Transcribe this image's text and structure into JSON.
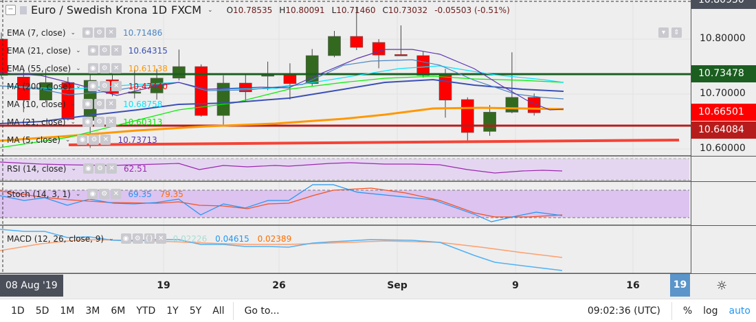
{
  "header": {
    "symbol": "Euro / Swedish Krona",
    "interval": "1D",
    "exchange": "FXCM",
    "open_label": "O",
    "open": "10.78535",
    "high_label": "H",
    "high": "10.80091",
    "low_label": "L",
    "low": "10.71460",
    "close_label": "C",
    "close": "10.73032",
    "change": "-0.05503 (-0.51%)"
  },
  "legends": [
    {
      "name": "EMA (7, close)",
      "value": "10.71486",
      "color": "#4a86c5"
    },
    {
      "name": "EMA (21, close)",
      "value": "10.64315",
      "color": "#3a4fb5"
    },
    {
      "name": "EMA (55, close)",
      "value": "10.61138",
      "color": "#ff9800"
    },
    {
      "name": "MA (200, close)",
      "value": "10.47440",
      "color": "#ff0000"
    },
    {
      "name": "MA (10, close)",
      "value": "10.68758",
      "color": "#00e5ff"
    },
    {
      "name": "MA (21, close)",
      "value": "10.60313",
      "color": "#00ee00"
    },
    {
      "name": "MA (5, close)",
      "value": "10.73713",
      "color": "#5e35b1"
    }
  ],
  "rsi": {
    "name": "RSI (14, close)",
    "value": "62.51",
    "color": "#9c27b0"
  },
  "stoch": {
    "name": "Stoch (14, 3, 1)",
    "k": "69.35",
    "d": "79.35",
    "k_color": "#2196f3",
    "d_color": "#ff6d00"
  },
  "macd": {
    "name": "MACD (12, 26, close, 9)",
    "hist": "0.02226",
    "macd": "0.04615",
    "signal": "0.02389"
  },
  "price_axis": {
    "ticks": [
      "10.80000",
      "10.70000",
      "10.60000"
    ],
    "crosshair": "10.80950",
    "tags": [
      {
        "value": "10.73478",
        "color": "#1b5e20"
      },
      {
        "value": "10.66501",
        "color": "#ff0000"
      },
      {
        "value": "10.64084",
        "color": "#b71c1c"
      }
    ]
  },
  "time_axis": {
    "crosshair": "08 Aug '19",
    "ticks": [
      "19",
      "26",
      "Sep",
      "9",
      "16"
    ],
    "today": "19"
  },
  "candles": [
    [
      10.8,
      10.812,
      10.728,
      10.734
    ],
    [
      10.731,
      10.746,
      10.667,
      10.689
    ],
    [
      10.689,
      10.746,
      10.685,
      10.721
    ],
    [
      10.721,
      10.731,
      10.652,
      10.654
    ],
    [
      10.652,
      10.739,
      10.602,
      10.725
    ],
    [
      10.726,
      10.737,
      10.696,
      10.701
    ],
    [
      10.703,
      10.746,
      10.692,
      10.704
    ],
    [
      10.702,
      10.746,
      10.69,
      10.729
    ],
    [
      10.729,
      10.781,
      10.725,
      10.75
    ],
    [
      10.75,
      10.754,
      10.659,
      10.661
    ],
    [
      10.661,
      10.734,
      10.644,
      10.72
    ],
    [
      10.72,
      10.737,
      10.686,
      10.704
    ],
    [
      10.733,
      10.759,
      10.707,
      10.735
    ],
    [
      10.736,
      10.756,
      10.69,
      10.719
    ],
    [
      10.719,
      10.782,
      10.715,
      10.77
    ],
    [
      10.77,
      10.815,
      10.767,
      10.805
    ],
    [
      10.805,
      10.859,
      10.78,
      10.785
    ],
    [
      10.794,
      10.8,
      10.747,
      10.771
    ],
    [
      10.772,
      10.825,
      10.77,
      10.771
    ],
    [
      10.77,
      10.777,
      10.73,
      10.734
    ],
    [
      10.734,
      10.746,
      10.657,
      10.689
    ],
    [
      10.69,
      10.694,
      10.611,
      10.63
    ],
    [
      10.632,
      10.68,
      10.624,
      10.667
    ],
    [
      10.667,
      10.776,
      10.665,
      10.694
    ],
    [
      10.694,
      10.701,
      10.661,
      10.666
    ]
  ],
  "toolbar": {
    "ranges": [
      "1D",
      "5D",
      "1M",
      "3M",
      "6M",
      "YTD",
      "1Y",
      "5Y",
      "All"
    ],
    "goto": "Go to...",
    "time": "09:02:36 (UTC)",
    "percent": "%",
    "log": "log",
    "auto": "auto"
  }
}
